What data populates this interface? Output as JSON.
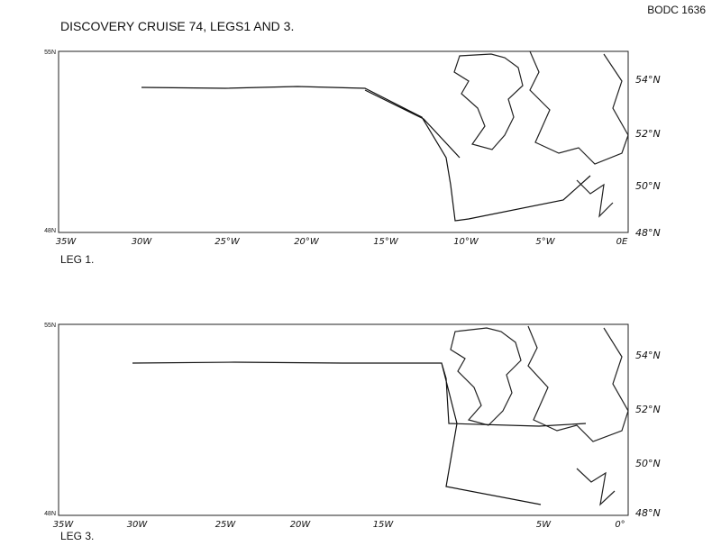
{
  "header": {
    "title": "DISCOVERY CRUISE 74, LEGS1 AND 3.",
    "reference": "BODC 1636"
  },
  "maps": [
    {
      "label": "LEG 1.",
      "lat_top": "55N",
      "lat_bottom": "48N",
      "lon_labels": [
        "35W",
        "30W",
        "25°W",
        "20°W",
        "15°W",
        "10°W",
        "5°W",
        "0E"
      ],
      "lat_labels": [
        "54°N",
        "52°N",
        "50°N",
        "48°N"
      ]
    },
    {
      "label": "LEG 3.",
      "lat_top": "55N",
      "lat_bottom": "48N",
      "lon_labels": [
        "35W",
        "30W",
        "25W",
        "20W",
        "15W",
        "5W",
        "0°"
      ],
      "lat_labels": [
        "54°N",
        "52°N",
        "50°N",
        "48°N"
      ]
    }
  ]
}
